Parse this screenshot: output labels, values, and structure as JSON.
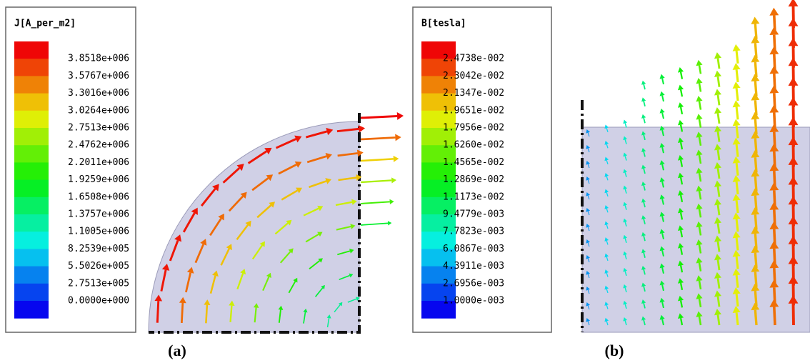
{
  "panels": [
    {
      "legend": {
        "title": "J[A_per_m2]",
        "labels": [
          "3.8518e+006",
          "3.5767e+006",
          "3.3016e+006",
          "3.0264e+006",
          "2.7513e+006",
          "2.4762e+006",
          "2.2011e+006",
          "1.9259e+006",
          "1.6508e+006",
          "1.3757e+006",
          "1.1005e+006",
          "8.2539e+005",
          "5.5026e+005",
          "2.7513e+005",
          "0.0000e+000"
        ]
      },
      "caption": "(a)"
    },
    {
      "legend": {
        "title": "B[tesla]",
        "labels": [
          "2.4738e-002",
          "2.3042e-002",
          "2.1347e-002",
          "1.9651e-002",
          "1.7956e-002",
          "1.6260e-002",
          "1.4565e-002",
          "1.2869e-002",
          "1.1173e-002",
          "9.4779e-003",
          "7.7823e-003",
          "6.0867e-003",
          "4.3911e-003",
          "2.6956e-003",
          "1.0000e-003"
        ]
      },
      "caption": "(b)"
    }
  ]
}
